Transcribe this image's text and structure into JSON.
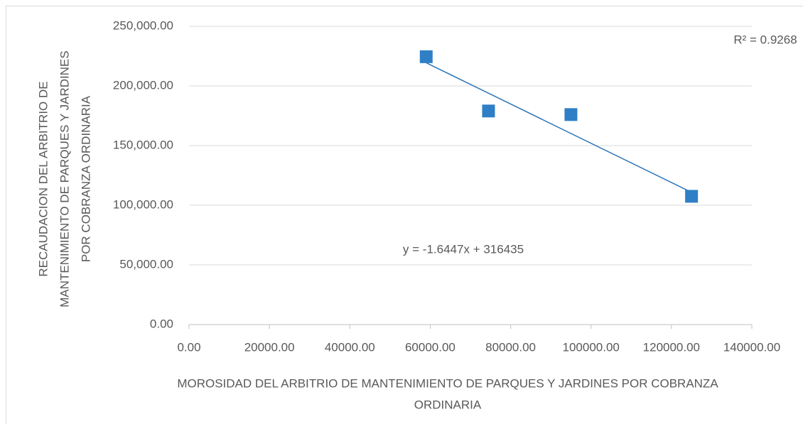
{
  "chart_data": {
    "type": "scatter",
    "x_label": [
      "MOROSIDAD DEL ARBITRIO DE MANTENIMIENTO DE PARQUES Y JARDINES POR COBRANZA",
      "ORDINARIA"
    ],
    "y_label": [
      "RECAUDACION DEL ARBITRIO DE",
      "MANTENIMIENTO DE PARQUES Y JARDINES",
      "POR COBRANZA ORDINARIA"
    ],
    "x": [
      59000,
      74500,
      95000,
      125000
    ],
    "values": [
      224500,
      179000,
      176000,
      107500
    ],
    "color": "#2e7fc6",
    "xlim": [
      0,
      140000
    ],
    "xticks": [
      {
        "value": 0,
        "label": "0.00"
      },
      {
        "value": 20000,
        "label": "20000.00"
      },
      {
        "value": 40000,
        "label": "40000.00"
      },
      {
        "value": 60000,
        "label": "60000.00"
      },
      {
        "value": 80000,
        "label": "80000.00"
      },
      {
        "value": 100000,
        "label": "100000.00"
      },
      {
        "value": 120000,
        "label": "120000.00"
      },
      {
        "value": 140000,
        "label": "140000.00"
      }
    ],
    "ylim": [
      0,
      250000
    ],
    "yticks": [
      {
        "value": 0,
        "label": "0.00"
      },
      {
        "value": 50000,
        "label": "50,000.00"
      },
      {
        "value": 100000,
        "label": "100,000.00"
      },
      {
        "value": 150000,
        "label": "150,000.00"
      },
      {
        "value": 200000,
        "label": "200,000.00"
      },
      {
        "value": 250000,
        "label": "250,000.00"
      }
    ],
    "grid": true,
    "trendline": {
      "slope": -1.6447,
      "intercept": 316435,
      "color": "#2e75b6",
      "equation": "y = -1.6447x + 316435",
      "r2": "R² = 0.9268"
    }
  }
}
